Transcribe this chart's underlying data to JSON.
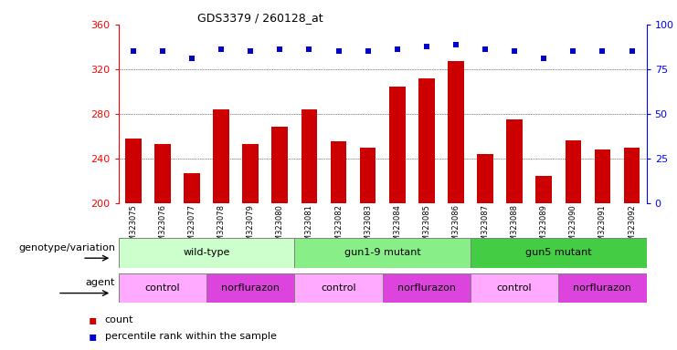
{
  "title": "GDS3379 / 260128_at",
  "samples": [
    "GSM323075",
    "GSM323076",
    "GSM323077",
    "GSM323078",
    "GSM323079",
    "GSM323080",
    "GSM323081",
    "GSM323082",
    "GSM323083",
    "GSM323084",
    "GSM323085",
    "GSM323086",
    "GSM323087",
    "GSM323088",
    "GSM323089",
    "GSM323090",
    "GSM323091",
    "GSM323092"
  ],
  "bar_values": [
    258,
    253,
    227,
    284,
    253,
    268,
    284,
    255,
    250,
    304,
    312,
    327,
    244,
    275,
    224,
    256,
    248,
    250
  ],
  "percentile_values": [
    336,
    336,
    330,
    338,
    336,
    338,
    338,
    336,
    336,
    338,
    340,
    342,
    338,
    336,
    330,
    336,
    336,
    336
  ],
  "bar_color": "#cc0000",
  "percentile_color": "#0000cc",
  "ylim_left": [
    200,
    360
  ],
  "ylim_right": [
    0,
    100
  ],
  "yticks_left": [
    200,
    240,
    280,
    320,
    360
  ],
  "yticks_right": [
    0,
    25,
    50,
    75,
    100
  ],
  "grid_values": [
    240,
    280,
    320
  ],
  "genotype_groups": [
    {
      "label": "wild-type",
      "start": 0,
      "end": 6,
      "color": "#ccffcc"
    },
    {
      "label": "gun1-9 mutant",
      "start": 6,
      "end": 12,
      "color": "#88ee88"
    },
    {
      "label": "gun5 mutant",
      "start": 12,
      "end": 18,
      "color": "#44cc44"
    }
  ],
  "agent_groups": [
    {
      "label": "control",
      "start": 0,
      "end": 3,
      "color": "#ffaaff"
    },
    {
      "label": "norflurazon",
      "start": 3,
      "end": 6,
      "color": "#dd44dd"
    },
    {
      "label": "control",
      "start": 6,
      "end": 9,
      "color": "#ffaaff"
    },
    {
      "label": "norflurazon",
      "start": 9,
      "end": 12,
      "color": "#dd44dd"
    },
    {
      "label": "control",
      "start": 12,
      "end": 15,
      "color": "#ffaaff"
    },
    {
      "label": "norflurazon",
      "start": 15,
      "end": 18,
      "color": "#dd44dd"
    }
  ],
  "legend_count_color": "#cc0000",
  "legend_percentile_color": "#0000cc",
  "background_color": "#ffffff",
  "axis_label_genotype": "genotype/variation",
  "axis_label_agent": "agent"
}
